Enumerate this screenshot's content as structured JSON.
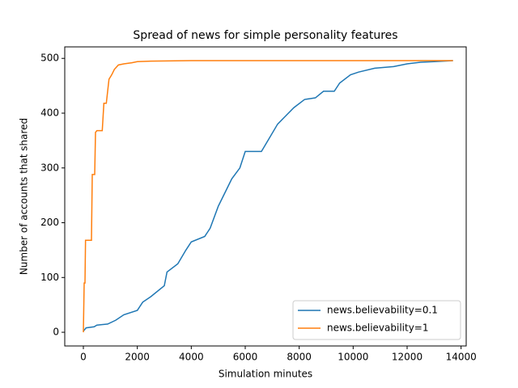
{
  "chart_data": {
    "type": "line",
    "title": "Spread of news for simple personality features",
    "x_label": "Simulation minutes",
    "y_label": "Number of accounts that shared",
    "xlim": [
      -690,
      14190
    ],
    "ylim": [
      -25,
      521
    ],
    "xticks": [
      0,
      2000,
      4000,
      6000,
      8000,
      10000,
      12000,
      14000
    ],
    "yticks": [
      0,
      100,
      200,
      300,
      400,
      500
    ],
    "legend": "lower right",
    "series": [
      {
        "name": "news.believability=0.1",
        "color": "#1f77b4",
        "x": [
          0,
          100,
          400,
          500,
          900,
          1200,
          1500,
          2000,
          2200,
          2500,
          3000,
          3100,
          3500,
          3800,
          4000,
          4500,
          4700,
          5000,
          5300,
          5500,
          5800,
          6000,
          6600,
          6900,
          7200,
          7500,
          7800,
          8200,
          8600,
          8900,
          9300,
          9500,
          9900,
          10200,
          10800,
          11500,
          12000,
          12500,
          13000,
          13700
        ],
        "values": [
          2,
          8,
          10,
          13,
          15,
          22,
          32,
          40,
          55,
          65,
          85,
          110,
          125,
          150,
          165,
          175,
          190,
          230,
          260,
          280,
          300,
          330,
          330,
          355,
          380,
          395,
          410,
          425,
          428,
          440,
          440,
          455,
          470,
          475,
          482,
          485,
          490,
          493,
          494,
          496
        ]
      },
      {
        "name": "news.believability=1",
        "color": "#ff7f0e",
        "x": [
          0,
          30,
          60,
          80,
          300,
          330,
          420,
          450,
          500,
          700,
          760,
          850,
          900,
          950,
          1050,
          1150,
          1300,
          1500,
          1800,
          2000,
          2500,
          4000,
          13700
        ],
        "values": [
          0,
          90,
          90,
          168,
          168,
          288,
          288,
          365,
          368,
          368,
          418,
          418,
          440,
          462,
          470,
          480,
          488,
          490,
          492,
          494,
          495,
          496,
          496
        ]
      }
    ]
  }
}
